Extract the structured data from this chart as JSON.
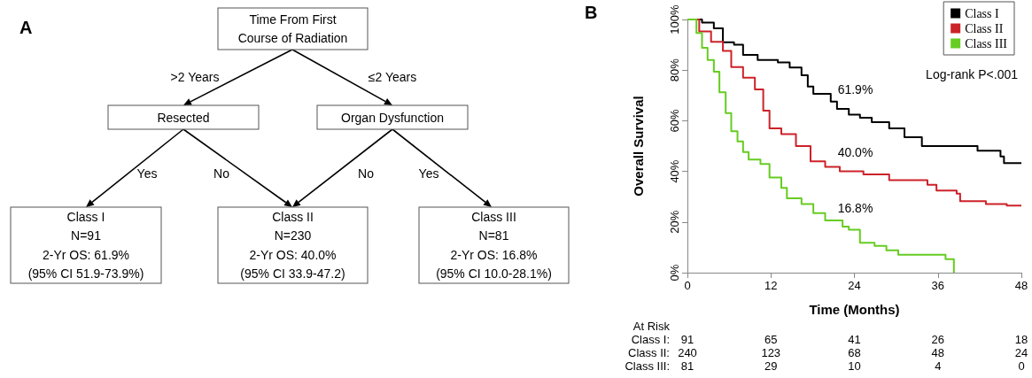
{
  "chart_data": [
    {
      "type": "other",
      "title": "A",
      "annotations": [
        "Time From First\nCourse of Radiation",
        "Resected",
        "Organ Dysfunction",
        "Class I\nN=91\n2-Yr OS: 61.9%\n(95% CI 51.9-73.9%)",
        "Class II\nN=230\n2-Yr OS: 40.0%\n(95% CI 33.9-47.2)",
        "Class III\nN=81\n2-Yr OS: 16.8%\n(95% CI 10.0-28.1%)",
        ">2 Years",
        "≤2 Years",
        "Yes",
        "No",
        "No",
        "Yes"
      ]
    },
    {
      "type": "step",
      "title": "B",
      "xlabel": "Time (Months)",
      "ylabel": "Overall Survival",
      "legend": "top right",
      "xlim": [
        0,
        48
      ],
      "xticks": [
        0,
        12,
        24,
        36,
        48
      ],
      "ylim": [
        0,
        100
      ],
      "yticks": [
        {
          "value": 0,
          "label": "0%"
        },
        {
          "value": 20,
          "label": "20%"
        },
        {
          "value": 40,
          "label": "40%"
        },
        {
          "value": 60,
          "label": "60%"
        },
        {
          "value": 80,
          "label": "80%"
        },
        {
          "value": 100,
          "label": "100%"
        }
      ],
      "series": [
        {
          "name": "Class I",
          "color": "#000000",
          "x": [
            0,
            2.1,
            3.8,
            5.1,
            6.7,
            8,
            10.1,
            13,
            14.7,
            16.4,
            17.3,
            18.1,
            20.6,
            21.5,
            23.2,
            24.8,
            26.5,
            29,
            31.2,
            33.7,
            41.7,
            45,
            45.5,
            48
          ],
          "values": [
            100,
            98.8,
            96.5,
            91,
            90,
            86,
            84,
            83,
            81,
            78,
            73.5,
            70.6,
            67.6,
            64.7,
            62.4,
            61.2,
            59.4,
            57,
            53.5,
            50,
            48.2,
            45.9,
            43.3,
            43.3
          ]
        },
        {
          "name": "Class II",
          "color": "#cc2229",
          "x": [
            0,
            1.7,
            3.4,
            5.1,
            6.3,
            8,
            9.7,
            10.9,
            11.8,
            13.5,
            15.6,
            17.7,
            19.8,
            21.9,
            25.3,
            29,
            34.5,
            35.8,
            38.7,
            39.2,
            42.9,
            45.9,
            48
          ],
          "values": [
            100,
            95.3,
            91.2,
            87.6,
            81.2,
            77,
            72.4,
            64,
            57,
            54.7,
            50,
            44,
            41.8,
            40,
            38.8,
            36.5,
            34.7,
            32.4,
            31.2,
            28.2,
            27.1,
            26.5,
            26.5
          ]
        },
        {
          "name": "Class III",
          "color": "#66cc22",
          "x": [
            0,
            1.3,
            2.1,
            2.9,
            3.8,
            4.6,
            5.5,
            6.3,
            7.2,
            8,
            8.8,
            10.5,
            11.8,
            13.5,
            14.3,
            16.4,
            18.1,
            19.8,
            22.3,
            23.2,
            24.8,
            26.9,
            28.6,
            30.3,
            37.1,
            38.3
          ],
          "values": [
            100,
            94.7,
            88.8,
            84,
            79.4,
            71.2,
            63,
            55.9,
            51.8,
            47.6,
            44.7,
            42.9,
            37.6,
            33.5,
            29.4,
            27.1,
            23.5,
            20.6,
            18.2,
            17,
            11.8,
            10.6,
            8.8,
            7.1,
            5.3,
            0
          ]
        }
      ],
      "annotations": [
        "61.9%",
        "40.0%",
        "16.8%",
        "Log-rank P<.001",
        "At Risk",
        "Class I:",
        "91",
        "65",
        "41",
        "26",
        "18",
        "Class II:",
        "240",
        "123",
        "68",
        "48",
        "24",
        "Class III:",
        "81",
        "29",
        "10",
        "4",
        "0"
      ]
    }
  ]
}
